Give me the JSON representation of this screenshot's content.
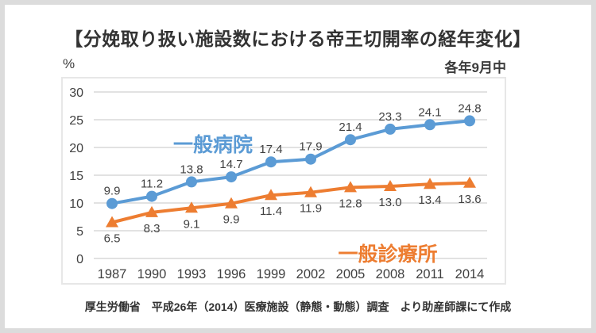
{
  "title": "【分娩取り扱い施設数における帝王切開率の経年変化】",
  "unit_label": "%",
  "period_note": "各年9月中",
  "footnote": "厚生労働省　平成26年（2014）医療施設（静態・動態）調査　より助産師課にて作成",
  "colors": {
    "hospital_blue": "#5B9BD5",
    "clinic_orange": "#ED7D31",
    "gridline": "#D9D9D9",
    "axis_text": "#404040",
    "panel_border": "#E7E7E7",
    "frame_border": "#DCDCDC",
    "title_text": "#333333"
  },
  "chart_data": {
    "type": "line",
    "title": "【分娩取り扱い施設数における帝王切開率の経年変化】",
    "xlabel": "",
    "ylabel": "%",
    "ylim": [
      0,
      30
    ],
    "yticks": [
      0,
      5,
      10,
      15,
      20,
      25,
      30
    ],
    "grid": true,
    "legend_position": "inline",
    "categories": [
      "1987",
      "1990",
      "1993",
      "1996",
      "1999",
      "2002",
      "2005",
      "2008",
      "2011",
      "2014"
    ],
    "series": [
      {
        "name": "一般病院",
        "color": "#5B9BD5",
        "marker": "circle",
        "label_side": "above",
        "values": [
          9.9,
          11.2,
          13.8,
          14.7,
          17.4,
          17.9,
          21.4,
          23.3,
          24.1,
          24.8
        ],
        "labels": [
          "9.9",
          "11.2",
          "13.8",
          "14.7",
          "17.4",
          "17.9",
          "21.4",
          "23.3",
          "24.1",
          "24.8"
        ]
      },
      {
        "name": "一般診療所",
        "color": "#ED7D31",
        "marker": "triangle",
        "label_side": "below",
        "values": [
          6.5,
          8.3,
          9.1,
          9.9,
          11.4,
          11.9,
          12.8,
          13.0,
          13.4,
          13.6
        ],
        "labels": [
          "6.5",
          "8.3",
          "9.1",
          "9.9",
          "11.4",
          "11.9",
          "12.8",
          "13.0",
          "13.4",
          "13.6"
        ]
      }
    ]
  }
}
